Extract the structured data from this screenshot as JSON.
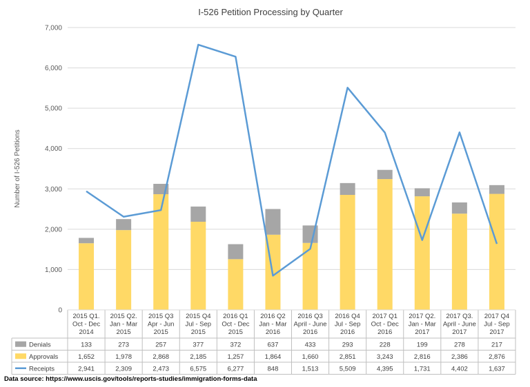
{
  "chart_data": {
    "type": "bar",
    "title": "I-526 Petition Processing by Quarter",
    "ylabel": "Number  of I-526 Petitions",
    "ylim": [
      0,
      7000
    ],
    "yticks": [
      0,
      1000,
      2000,
      3000,
      4000,
      5000,
      6000,
      7000
    ],
    "ytick_labels": [
      "0",
      "1,000",
      "2,000",
      "3,000",
      "4,000",
      "5,000",
      "6,000",
      "7,000"
    ],
    "grid": true,
    "stacked": true,
    "legend": "data-table",
    "categories": [
      [
        "2015 Q1.",
        "Oct - Dec",
        "2014"
      ],
      [
        "2015 Q2.",
        "Jan - Mar",
        "2015"
      ],
      [
        "2015 Q3",
        "Apr - Jun",
        "2015"
      ],
      [
        "2015 Q4",
        "Jul - Sep",
        "2015"
      ],
      [
        "2016 Q1",
        "Oct - Dec",
        "2015"
      ],
      [
        "2016 Q2",
        "Jan - Mar",
        "2016"
      ],
      [
        "2016 Q3",
        "April - June",
        "2016"
      ],
      [
        "2016 Q4",
        "Jul - Sep",
        "2016"
      ],
      [
        "2017 Q1",
        "Oct - Dec",
        "2016"
      ],
      [
        "2017 Q2.",
        "Jan - Mar",
        "2017"
      ],
      [
        "2017 Q3.",
        "April - June",
        "2017"
      ],
      [
        "2017 Q4",
        "Jul - Sep",
        "2017"
      ]
    ],
    "series": [
      {
        "name": "Denials",
        "kind": "bar",
        "color": "#A6A6A6",
        "values": [
          133,
          273,
          257,
          377,
          372,
          637,
          433,
          293,
          228,
          199,
          278,
          217
        ],
        "labels": [
          "133",
          "273",
          "257",
          "377",
          "372",
          "637",
          "433",
          "293",
          "228",
          "199",
          "278",
          "217"
        ]
      },
      {
        "name": "Approvals",
        "kind": "bar",
        "color": "#FFD966",
        "values": [
          1652,
          1978,
          2868,
          2185,
          1257,
          1864,
          1660,
          2851,
          3243,
          2816,
          2386,
          2876
        ],
        "labels": [
          "1,652",
          "1,978",
          "2,868",
          "2,185",
          "1,257",
          "1,864",
          "1,660",
          "2,851",
          "3,243",
          "2,816",
          "2,386",
          "2,876"
        ]
      },
      {
        "name": "Receipts",
        "kind": "line",
        "color": "#5B9BD5",
        "values": [
          2941,
          2309,
          2473,
          6575,
          6277,
          848,
          1513,
          5509,
          4395,
          1731,
          4402,
          1637
        ],
        "labels": [
          "2,941",
          "2,309",
          "2,473",
          "6,575",
          "6,277",
          "848",
          "1,513",
          "5,509",
          "4,395",
          "1,731",
          "4,402",
          "1,637"
        ]
      }
    ]
  },
  "footer": {
    "source": "Data source: https://www.uscis.gov/tools/reports-studies/immigration-forms-data"
  }
}
